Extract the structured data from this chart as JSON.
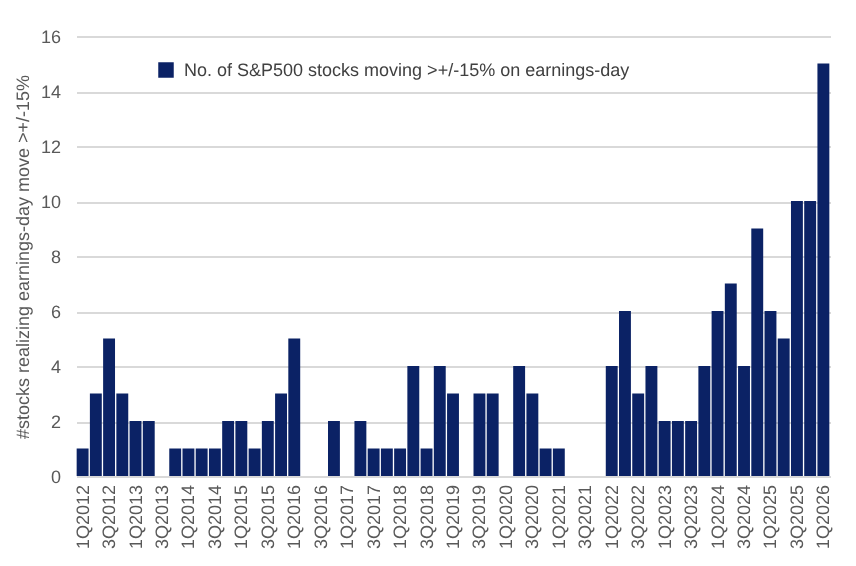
{
  "chart_data": {
    "type": "bar",
    "ylabel": "#stocks realizing earnings-day move >+/-15%",
    "categories": [
      "1Q2012",
      null,
      "3Q2012",
      null,
      "1Q2013",
      null,
      "3Q2013",
      null,
      "1Q2014",
      null,
      "3Q2014",
      null,
      "1Q2015",
      null,
      "3Q2015",
      null,
      "1Q2016",
      null,
      "3Q2016",
      null,
      "1Q2017",
      null,
      "3Q2017",
      null,
      "1Q2018",
      null,
      "3Q2018",
      null,
      "1Q2019",
      null,
      "3Q2019",
      null,
      "1Q2020",
      null,
      "3Q2020",
      null,
      "1Q2021",
      null,
      "3Q2021",
      null,
      "1Q2022",
      null,
      "3Q2022",
      null,
      "1Q2023",
      null,
      "3Q2023",
      null,
      "1Q2024",
      null,
      "3Q2024",
      null,
      "1Q2025",
      null,
      "3Q2025",
      null,
      "1Q2026"
    ],
    "series": [
      {
        "name": "No. of S&P500 stocks moving >+/-15% on earnings-day",
        "color": "#0b2265",
        "values": [
          1,
          3,
          5,
          3,
          2,
          2,
          0,
          1,
          1,
          1,
          1,
          2,
          2,
          1,
          2,
          3,
          5,
          0,
          0,
          2,
          0,
          2,
          1,
          1,
          1,
          4,
          1,
          4,
          3,
          0,
          3,
          3,
          0,
          4,
          3,
          1,
          1,
          0,
          0,
          0,
          4,
          6,
          3,
          4,
          2,
          2,
          2,
          4,
          6,
          7,
          4,
          9,
          6,
          5,
          10,
          10,
          15
        ]
      }
    ],
    "ylim": [
      0,
      16
    ],
    "yticks": [
      0,
      2,
      4,
      6,
      8,
      10,
      12,
      14,
      16
    ],
    "grid": "y",
    "legend": "top left"
  }
}
